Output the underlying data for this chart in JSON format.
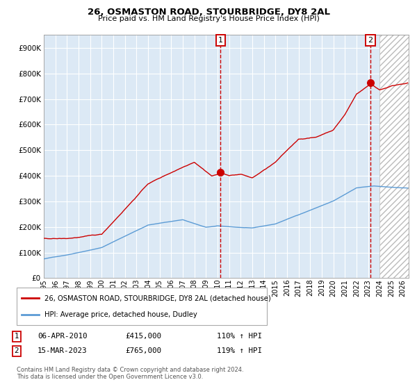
{
  "title": "26, OSMASTON ROAD, STOURBRIDGE, DY8 2AL",
  "subtitle": "Price paid vs. HM Land Registry's House Price Index (HPI)",
  "legend_line1": "26, OSMASTON ROAD, STOURBRIDGE, DY8 2AL (detached house)",
  "legend_line2": "HPI: Average price, detached house, Dudley",
  "footnote": "Contains HM Land Registry data © Crown copyright and database right 2024.\nThis data is licensed under the Open Government Licence v3.0.",
  "annotation1": {
    "label": "1",
    "date_x": 2010.27,
    "price": 415000,
    "date_str": "06-APR-2010",
    "price_str": "£415,000",
    "hpi_str": "110% ↑ HPI"
  },
  "annotation2": {
    "label": "2",
    "date_x": 2023.21,
    "price": 765000,
    "date_str": "15-MAR-2023",
    "price_str": "£765,000",
    "hpi_str": "119% ↑ HPI"
  },
  "hpi_color": "#5b9bd5",
  "price_color": "#cc0000",
  "bg_color": "#dce9f5",
  "ylim": [
    0,
    950000
  ],
  "xlim_start": 1995.0,
  "xlim_end": 2026.5,
  "hatch_start": 2024.0
}
